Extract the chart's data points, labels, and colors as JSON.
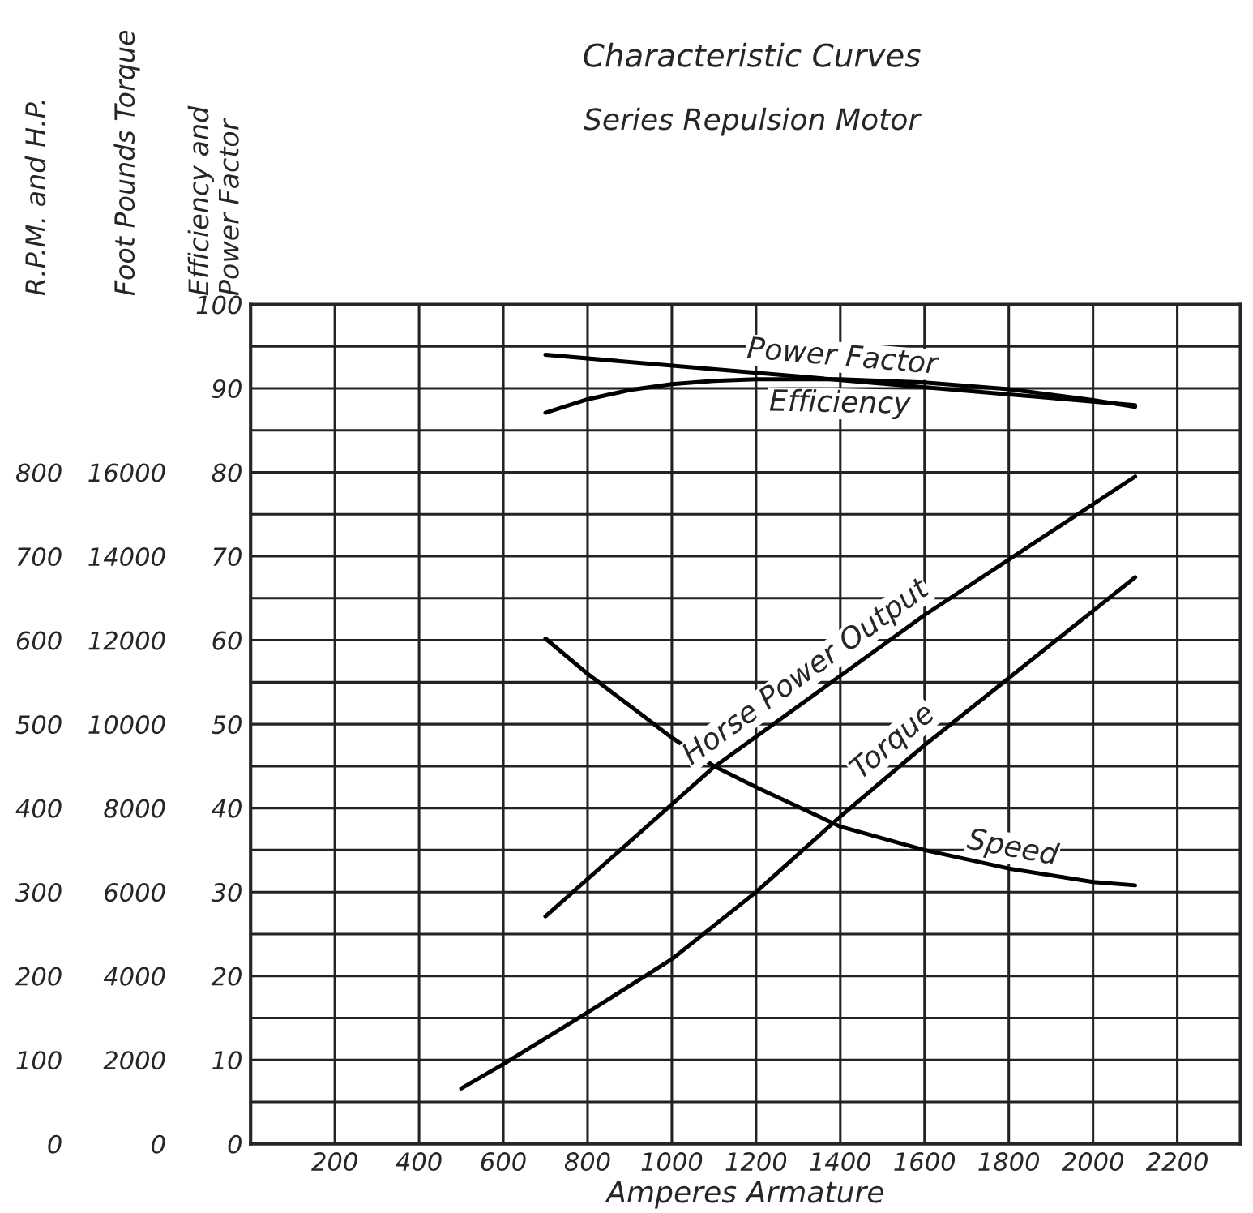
{
  "chart_data": {
    "type": "line",
    "title": "Characteristic Curves",
    "subtitle": "Series Repulsion Motor",
    "xlabel": "Amperes Armature",
    "ylabel": "Efficiency and\nPower Factor",
    "y2label": "Foot Pounds Torque",
    "y3label": "R.P.M. and H.P.",
    "xlim": [
      0,
      2350
    ],
    "xticks": [
      200,
      400,
      600,
      800,
      1000,
      1200,
      1400,
      1600,
      1800,
      2000,
      2200
    ],
    "ylim": [
      0,
      100
    ],
    "yticks": [
      0,
      10,
      20,
      30,
      40,
      50,
      60,
      70,
      80,
      90,
      100
    ],
    "y2lim": [
      0,
      20000
    ],
    "y2ticks": [
      0,
      2000,
      4000,
      6000,
      8000,
      10000,
      12000,
      14000,
      16000
    ],
    "y3lim": [
      0,
      1000
    ],
    "y3ticks": [
      0,
      100,
      200,
      300,
      400,
      500,
      600,
      700,
      800
    ],
    "grid": true,
    "legend": false,
    "marker": "none",
    "line_style": "solid",
    "series": [
      {
        "name": "Power Factor",
        "color": "#000000",
        "axis": "y",
        "x": [
          700,
          1400,
          2100
        ],
        "values": [
          94.0,
          91.0,
          88.0
        ]
      },
      {
        "name": "Efficiency",
        "color": "#000000",
        "axis": "y",
        "x": [
          700,
          800,
          900,
          1000,
          1100,
          1200,
          1400,
          1600,
          1800,
          2000,
          2100
        ],
        "values": [
          87.1,
          88.7,
          89.8,
          90.5,
          90.9,
          91.1,
          91.1,
          90.7,
          89.9,
          88.6,
          87.8
        ]
      },
      {
        "name": "Horse Power Output",
        "color": "#000000",
        "axis": "y3",
        "x": [
          700,
          1100,
          1600,
          2100
        ],
        "values": [
          271,
          449,
          630,
          795
        ]
      },
      {
        "name": "Torque",
        "color": "#000000",
        "axis": "y2",
        "x": [
          500,
          600,
          800,
          1000,
          1200,
          1400,
          1600,
          1800,
          2000,
          2100
        ],
        "values": [
          1320,
          1900,
          3130,
          4400,
          6000,
          7800,
          9500,
          11100,
          12700,
          13500
        ]
      },
      {
        "name": "Speed",
        "color": "#000000",
        "axis": "y3",
        "x": [
          700,
          800,
          900,
          1000,
          1100,
          1200,
          1400,
          1600,
          1800,
          2000,
          2100
        ],
        "values": [
          602,
          560,
          522,
          484,
          450,
          425,
          378,
          350,
          328,
          312,
          308
        ]
      }
    ]
  }
}
